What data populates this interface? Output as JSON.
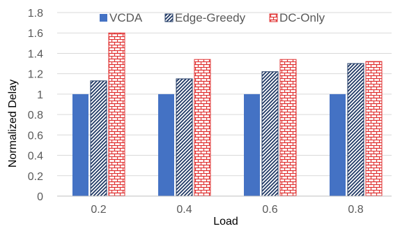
{
  "chart_data": {
    "type": "bar",
    "title": "",
    "xlabel": "Load",
    "ylabel": "Normalized Delay",
    "categories": [
      "0.2",
      "0.4",
      "0.6",
      "0.8"
    ],
    "ylim": [
      0,
      1.8
    ],
    "yticks": [
      "0",
      "0.2",
      "0.4",
      "0.6",
      "0.8",
      "1",
      "1.2",
      "1.4",
      "1.6",
      "1.8"
    ],
    "grid": true,
    "legend_position": "top",
    "series": [
      {
        "name": "VCDA",
        "values": [
          1.0,
          1.0,
          1.0,
          1.0
        ],
        "color": "#4472c4",
        "pattern": "solid"
      },
      {
        "name": "Edge-Greedy",
        "values": [
          1.13,
          1.15,
          1.22,
          1.3
        ],
        "color": "#1f3864",
        "pattern": "diagonal-hatch"
      },
      {
        "name": "DC-Only",
        "values": [
          1.6,
          1.34,
          1.34,
          1.32
        ],
        "color": "#e03030",
        "pattern": "brick"
      }
    ],
    "colors": {
      "grid": "#d9d9d9",
      "axis": "#bfbfbf",
      "text": "#595959"
    }
  }
}
